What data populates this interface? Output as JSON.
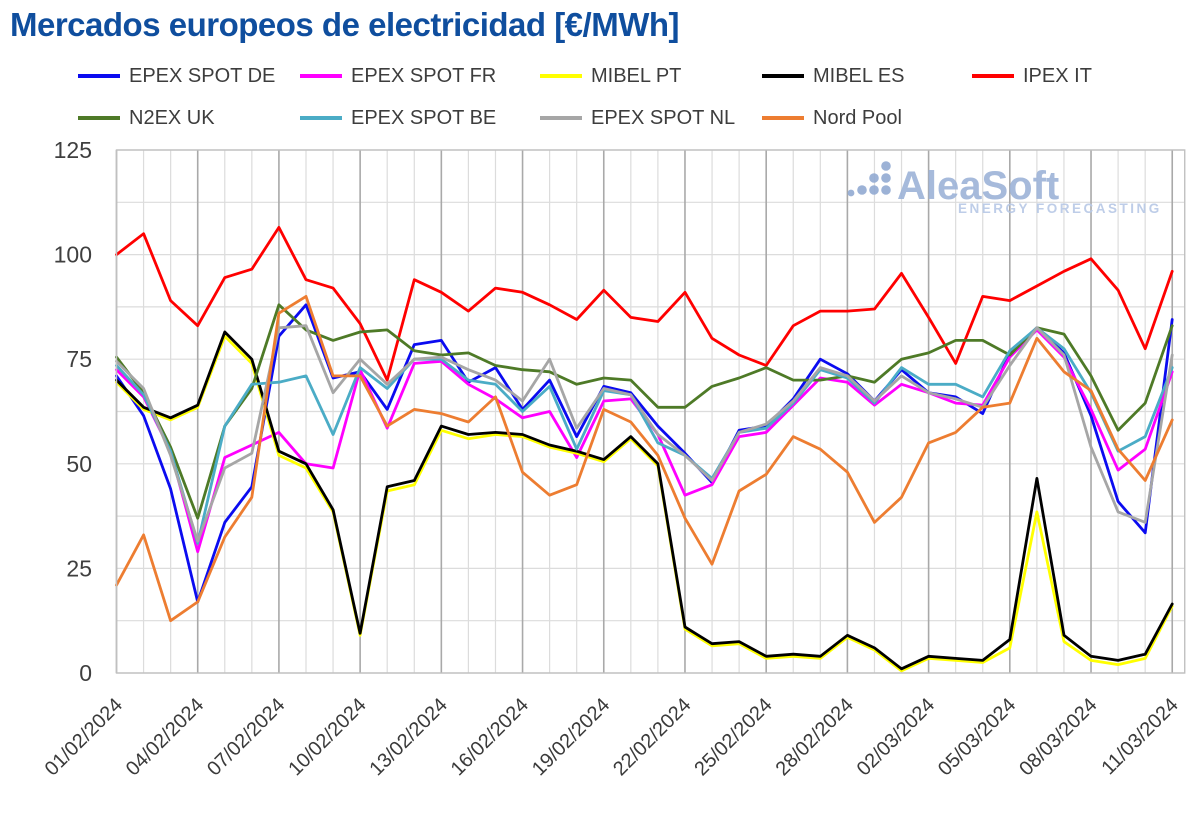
{
  "title": "Mercados europeos de electricidad [€/MWh]",
  "title_color": "#0f4e9e",
  "watermark": {
    "name": "AleaSoft",
    "subtitle": "ENERGY FORECASTING"
  },
  "legend": {
    "row1": [
      "EPEX SPOT DE",
      "EPEX SPOT FR",
      "MIBEL PT",
      "MIBEL ES",
      "IPEX IT"
    ],
    "row2": [
      "N2EX UK",
      "EPEX SPOT BE",
      "EPEX SPOT NL",
      "Nord Pool"
    ]
  },
  "y_axis": {
    "min": 0,
    "max": 125,
    "label_step": 25,
    "grid_step": 12.5,
    "tick_labels": [
      "0",
      "25",
      "50",
      "75",
      "100",
      "125"
    ]
  },
  "x_axis": {
    "tick_labels": [
      "01/02/2024",
      "04/02/2024",
      "07/02/2024",
      "10/02/2024",
      "13/02/2024",
      "16/02/2024",
      "19/02/2024",
      "22/02/2024",
      "25/02/2024",
      "28/02/2024",
      "02/03/2024",
      "05/03/2024",
      "08/03/2024",
      "11/03/2024"
    ],
    "tick_every_days": 3
  },
  "chart_data": {
    "type": "line",
    "title": "Mercados europeos de electricidad [€/MWh]",
    "ylabel": "€/MWh",
    "ylim": [
      0,
      125
    ],
    "grid": true,
    "legend_position": "top",
    "x": [
      "01/02/2024",
      "02/02/2024",
      "03/02/2024",
      "04/02/2024",
      "05/02/2024",
      "06/02/2024",
      "07/02/2024",
      "08/02/2024",
      "09/02/2024",
      "10/02/2024",
      "11/02/2024",
      "12/02/2024",
      "13/02/2024",
      "14/02/2024",
      "15/02/2024",
      "16/02/2024",
      "17/02/2024",
      "18/02/2024",
      "19/02/2024",
      "20/02/2024",
      "21/02/2024",
      "22/02/2024",
      "23/02/2024",
      "24/02/2024",
      "25/02/2024",
      "26/02/2024",
      "27/02/2024",
      "28/02/2024",
      "29/02/2024",
      "01/03/2024",
      "02/03/2024",
      "03/03/2024",
      "04/03/2024",
      "05/03/2024",
      "06/03/2024",
      "07/03/2024",
      "08/03/2024",
      "09/03/2024",
      "10/03/2024",
      "11/03/2024"
    ],
    "series": [
      {
        "name": "EPEX SPOT DE",
        "color": "#0b0bf0",
        "values": [
          71,
          61.5,
          44,
          17,
          36,
          44.5,
          80.5,
          88,
          70.5,
          72,
          63,
          78.5,
          79.5,
          69.5,
          73,
          63,
          70,
          56.5,
          68.5,
          67,
          59,
          52.5,
          45.5,
          58,
          59,
          65.5,
          75,
          71.5,
          65,
          72.5,
          67,
          66,
          62,
          76.5,
          82.5,
          76.5,
          61.5,
          41,
          33.5,
          84.5
        ]
      },
      {
        "name": "EPEX SPOT FR",
        "color": "#ff00ff",
        "values": [
          72.5,
          66,
          53,
          29,
          51.5,
          54.5,
          57.5,
          50,
          49,
          72.5,
          58.5,
          74,
          74.5,
          69,
          65.5,
          61,
          62.5,
          51.5,
          65,
          65.5,
          57,
          42.5,
          45,
          56.5,
          57.5,
          64,
          70.5,
          69.5,
          64,
          69,
          67,
          64.5,
          64,
          75.5,
          82,
          75.5,
          63,
          48.5,
          53.5,
          72
        ]
      },
      {
        "name": "MIBEL PT",
        "color": "#ffff00",
        "values": [
          69.5,
          63,
          60.5,
          63.5,
          80.5,
          74,
          52,
          49,
          38.5,
          9,
          43.5,
          45,
          58,
          56,
          57,
          56.5,
          54,
          52.5,
          50.5,
          56,
          49.5,
          10.5,
          6.5,
          7,
          3.5,
          4,
          3.5,
          8.5,
          5.5,
          0.5,
          3.5,
          3,
          2.5,
          6,
          38.5,
          7.5,
          3,
          2,
          3.5,
          16
        ]
      },
      {
        "name": "MIBEL ES",
        "color": "#000000",
        "values": [
          70,
          63.5,
          61,
          64,
          81.5,
          75,
          53,
          50,
          39,
          9.5,
          44.5,
          46,
          59,
          57,
          57.5,
          57,
          54.5,
          53,
          51,
          56.5,
          50,
          11,
          7,
          7.5,
          4,
          4.5,
          4,
          9,
          6,
          1,
          4,
          3.5,
          3,
          8,
          46.5,
          9,
          4,
          3,
          4.5,
          16.5
        ]
      },
      {
        "name": "IPEX IT",
        "color": "#ff0000",
        "values": [
          100,
          105,
          89,
          83,
          94.5,
          96.5,
          106.5,
          94,
          92,
          83.5,
          70,
          94,
          91,
          86.5,
          92,
          91,
          88,
          84.5,
          91.5,
          85,
          84,
          91,
          80,
          76,
          73.5,
          83,
          86.5,
          86.5,
          87,
          95.5,
          85,
          74,
          90,
          89,
          92.5,
          96,
          99,
          91.5,
          77.5,
          96
        ]
      },
      {
        "name": "N2EX UK",
        "color": "#4e7a27",
        "values": [
          75.5,
          67,
          54,
          37,
          59,
          68,
          88,
          82,
          79.5,
          81.5,
          82,
          77,
          76,
          76.5,
          73.5,
          72.5,
          72,
          69,
          70.5,
          70,
          63.5,
          63.5,
          68.5,
          70.5,
          73,
          70,
          70,
          71,
          69.5,
          75,
          76.5,
          79.5,
          79.5,
          76,
          82.5,
          81,
          71,
          58,
          64.5,
          83
        ]
      },
      {
        "name": "EPEX SPOT BE",
        "color": "#4bacc6",
        "values": [
          73.5,
          66.5,
          53,
          31,
          59,
          69,
          69.5,
          71,
          57,
          73,
          68,
          75,
          75,
          70,
          69,
          62.5,
          68.5,
          53.5,
          67.5,
          66.5,
          55,
          52,
          46.5,
          57.5,
          58.5,
          64.5,
          72.5,
          70.5,
          64.5,
          73,
          69,
          69,
          66,
          77,
          82.5,
          77.5,
          67,
          53,
          56.5,
          73
        ]
      },
      {
        "name": "EPEX SPOT NL",
        "color": "#a6a6a6",
        "values": [
          74.5,
          68,
          52,
          31.5,
          49,
          52.5,
          82.5,
          83,
          67,
          75,
          69,
          75,
          75.5,
          72.5,
          70,
          65,
          75,
          58.5,
          68,
          66.5,
          57,
          52,
          46,
          57.5,
          59.5,
          65,
          73,
          71,
          65,
          71,
          67,
          65.5,
          63.5,
          73.5,
          82.5,
          76,
          54,
          38.5,
          36,
          76
        ]
      },
      {
        "name": "Nord Pool",
        "color": "#ed7d31",
        "values": [
          21,
          33,
          12.5,
          17,
          32.5,
          42,
          86,
          90,
          71,
          71,
          59,
          63,
          62,
          60,
          66,
          48,
          42.5,
          45,
          63,
          60,
          52,
          37,
          26,
          43.5,
          47.5,
          56.5,
          53.5,
          48,
          36,
          42,
          55,
          57.5,
          63.5,
          64.5,
          80,
          72,
          67.5,
          53.5,
          46,
          60.5
        ]
      }
    ]
  },
  "colors": {
    "grid_minor": "#dcdcdc",
    "grid_major": "#a9a9a9",
    "plot_border": "#c0c0c0",
    "axis_text": "#3d3d3d",
    "watermark_main": "#9db3d8",
    "watermark_sub": "#b7c8e6",
    "watermark_dots": "#92aad2"
  }
}
